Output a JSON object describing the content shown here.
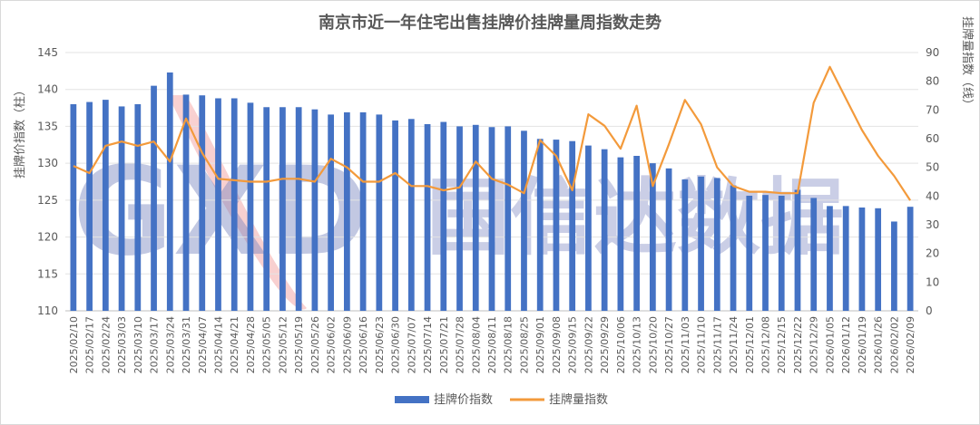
{
  "chart_data": {
    "type": "bar",
    "title": "南京市近一年住宅出售挂牌价挂牌量周指数走势",
    "ylabel_left": "挂牌价指数（柱）",
    "ylabel_right": "挂牌量指数（线）",
    "ylim_left": [
      110,
      145
    ],
    "yticks_left": [
      110,
      115,
      120,
      125,
      130,
      135,
      140,
      145
    ],
    "ylim_right": [
      0,
      90
    ],
    "yticks_right": [
      0,
      10,
      20,
      30,
      40,
      50,
      60,
      70,
      80,
      90
    ],
    "grid": true,
    "legend_position": "bottom",
    "categories": [
      "2025/02/10",
      "2025/02/17",
      "2025/02/24",
      "2025/03/03",
      "2025/03/10",
      "2025/03/17",
      "2025/03/24",
      "2025/03/31",
      "2025/04/07",
      "2025/04/14",
      "2025/04/21",
      "2025/04/28",
      "2025/05/05",
      "2025/05/12",
      "2025/05/19",
      "2025/05/26",
      "2025/06/02",
      "2025/06/09",
      "2025/06/16",
      "2025/06/23",
      "2025/06/30",
      "2025/07/07",
      "2025/07/14",
      "2025/07/21",
      "2025/07/28",
      "2025/08/04",
      "2025/08/11",
      "2025/08/18",
      "2025/08/25",
      "2025/09/01",
      "2025/09/08",
      "2025/09/15",
      "2025/09/22",
      "2025/09/29",
      "2025/10/06",
      "2025/10/13",
      "2025/10/20",
      "2025/10/27",
      "2025/11/03",
      "2025/11/10",
      "2025/11/17",
      "2025/11/24",
      "2025/12/01",
      "2025/12/08",
      "2025/12/15",
      "2025/12/22",
      "2025/12/29",
      "2026/01/05",
      "2026/01/12",
      "2026/01/19",
      "2026/01/26",
      "2026/02/02",
      "2026/02/09"
    ],
    "series": [
      {
        "name": "挂牌价指数",
        "type": "bar",
        "axis": "left",
        "color": "#4472C4",
        "values": [
          138.0,
          138.3,
          138.6,
          137.7,
          138.0,
          140.5,
          142.3,
          139.3,
          139.2,
          138.8,
          138.8,
          138.2,
          137.6,
          137.6,
          137.6,
          137.3,
          136.6,
          136.9,
          136.9,
          136.6,
          135.8,
          136.0,
          135.3,
          135.6,
          135.0,
          135.2,
          134.9,
          135.0,
          134.4,
          133.3,
          133.2,
          133.0,
          132.4,
          131.9,
          130.8,
          131.0,
          130.0,
          129.3,
          127.8,
          128.2,
          128.0,
          127.0,
          125.6,
          125.7,
          125.6,
          126.4,
          125.3,
          124.2,
          124.2,
          124.0,
          123.9,
          122.1,
          124.1
        ]
      },
      {
        "name": "挂牌量指数",
        "type": "line",
        "axis": "right",
        "color": "#F39A3B",
        "values": [
          50.5,
          48.0,
          57.5,
          59.0,
          57.5,
          59.0,
          52.0,
          67.0,
          55.0,
          46.0,
          45.5,
          45.0,
          45.0,
          46.0,
          46.0,
          45.0,
          53.0,
          50.0,
          45.0,
          45.0,
          48.0,
          43.5,
          43.5,
          42.0,
          43.0,
          52.0,
          46.0,
          44.0,
          41.0,
          59.5,
          54.0,
          42.0,
          68.5,
          64.5,
          56.5,
          71.5,
          43.5,
          58.0,
          73.5,
          65.0,
          50.0,
          43.5,
          41.5,
          41.5,
          41.0,
          41.0,
          72.5,
          85.0,
          74.0,
          63.0,
          54.0,
          47.0,
          38.5
        ]
      }
    ]
  },
  "watermark": {
    "logo_text": "GXD",
    "brand_text": "国信达数据",
    "color": "#6B77B8",
    "accent_color": "#F08C8C"
  }
}
